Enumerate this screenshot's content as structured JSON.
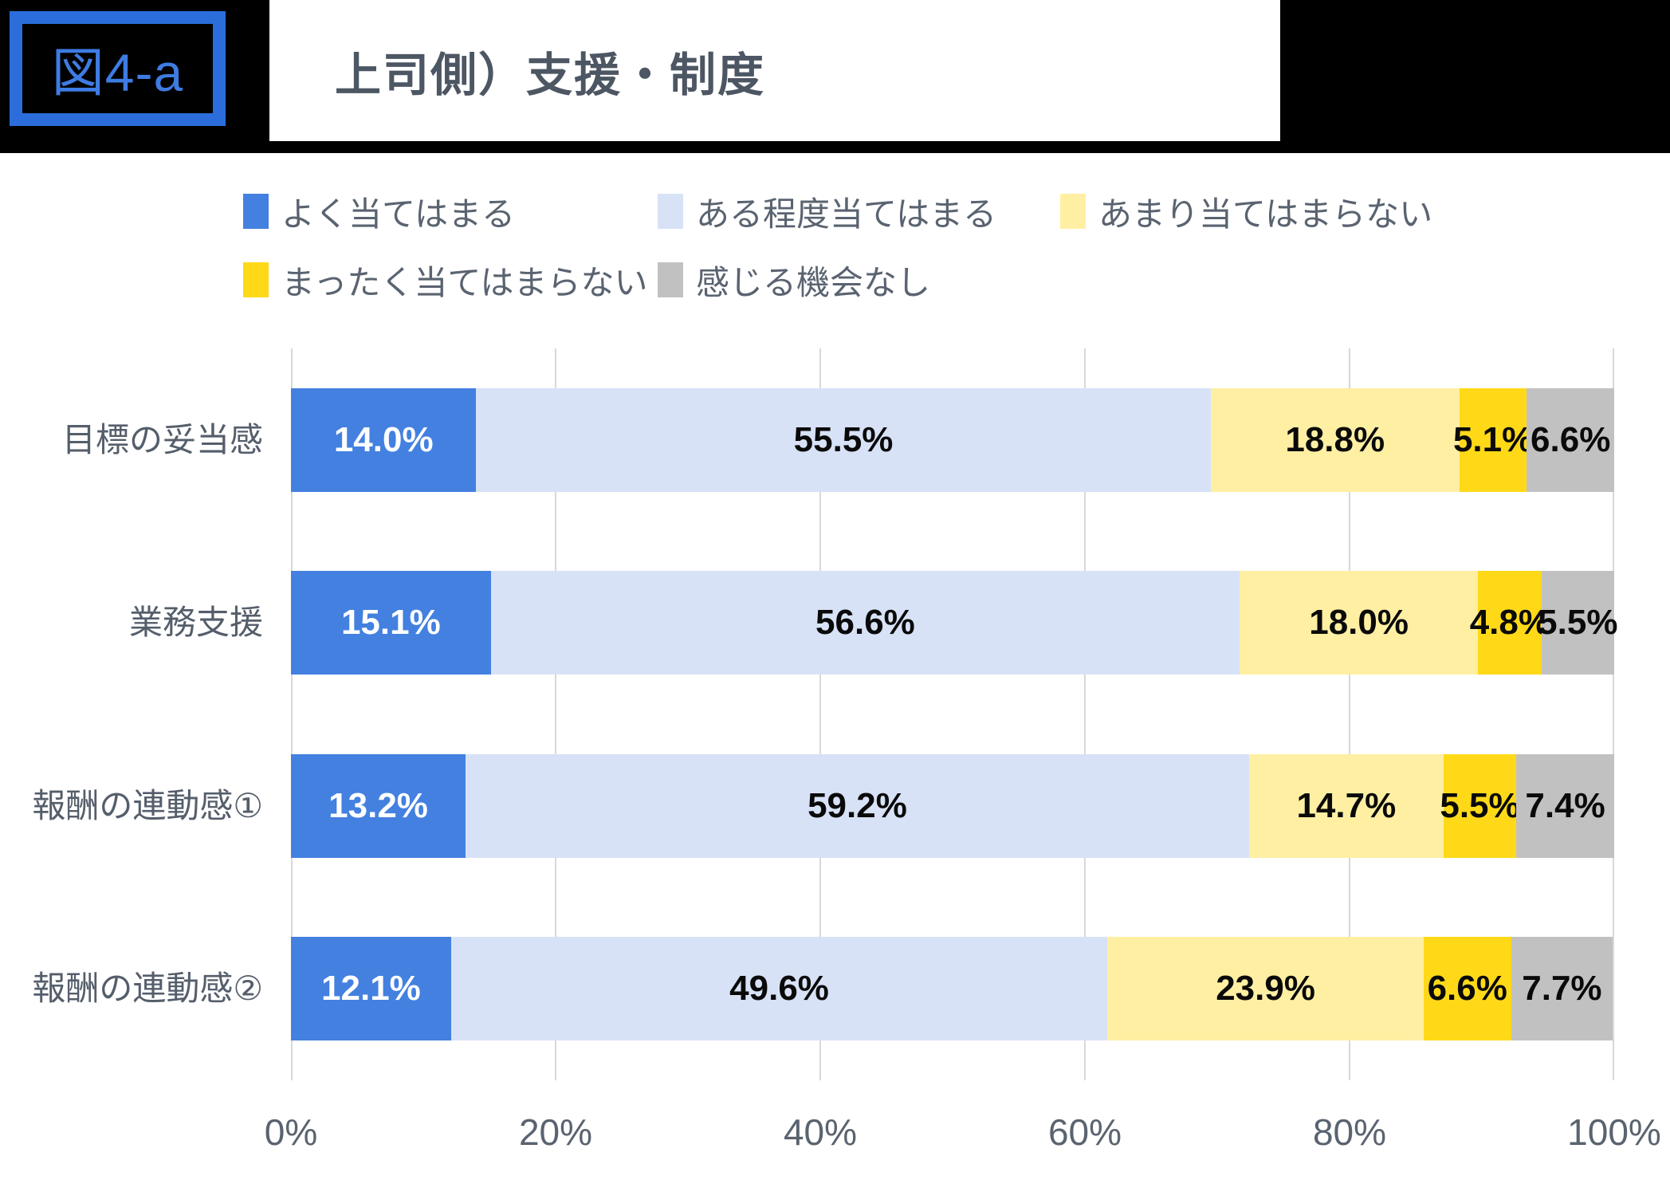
{
  "header": {
    "badge": "図4-a",
    "title": "上司側）支援・制度"
  },
  "colors": {
    "banner_bg": "#000000",
    "badge_border": "#2B6EDB",
    "badge_text": "#3E7CE3",
    "title_text": "#4D5663",
    "legend_text": "#5A6370",
    "category_text": "#555E6B",
    "axis_text": "#5A6370",
    "gridline": "#D8D8D8"
  },
  "chart_data": {
    "type": "bar",
    "orientation": "horizontal",
    "stacked": true,
    "title": "上司側）支援・制度",
    "categories": [
      "目標の妥当感",
      "業務支援",
      "報酬の連動感①",
      "報酬の連動感②"
    ],
    "series": [
      {
        "name": "よく当てはまる",
        "color": "#4380E0",
        "label_color": "#FFFFFF",
        "values": [
          14.0,
          15.1,
          13.2,
          12.1
        ]
      },
      {
        "name": "ある程度当てはまる",
        "color": "#D8E2F6",
        "label_color": "#0A0A0A",
        "values": [
          55.5,
          56.6,
          59.2,
          49.6
        ]
      },
      {
        "name": "あまり当てはまらない",
        "color": "#FFEFA3",
        "label_color": "#0A0A0A",
        "values": [
          18.8,
          18.0,
          14.7,
          23.9
        ]
      },
      {
        "name": "まったく当てはまらない",
        "color": "#FFD918",
        "label_color": "#0A0A0A",
        "values": [
          5.1,
          4.8,
          5.5,
          6.6
        ]
      },
      {
        "name": "感じる機会なし",
        "color": "#C1C1C1",
        "label_color": "#0A0A0A",
        "values": [
          6.6,
          5.5,
          7.4,
          7.7
        ]
      }
    ],
    "x_ticks": [
      "0%",
      "20%",
      "40%",
      "60%",
      "80%",
      "100%"
    ],
    "xlim": [
      0,
      100
    ],
    "value_label_format": "0.0%",
    "legend_position": "top",
    "grid": "vertical-only"
  }
}
